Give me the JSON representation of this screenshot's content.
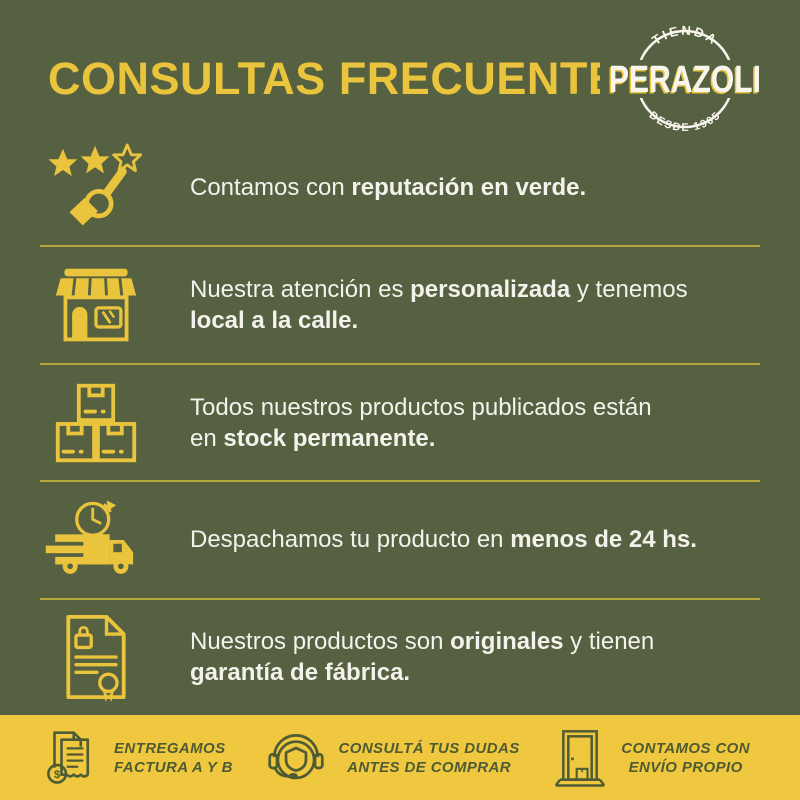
{
  "page": {
    "bg": "#566141",
    "accent": "#E9C43C",
    "divider": "#B3A93D",
    "text_color": "#F3F2EC",
    "footer_bg": "#EFC840",
    "footer_ink": "#4E5B33"
  },
  "header": {
    "title": "CONSULTAS FRECUENTES"
  },
  "logo": {
    "top_arc": "· TIENDA ·",
    "name": "PERAZOLI",
    "bottom_arc": "· DESDE 1905 ·"
  },
  "rows": [
    {
      "icon": "reputation-stars-hand-icon",
      "lines": [
        [
          {
            "t": "Contamos con ",
            "b": false
          },
          {
            "t": "reputación en verde.",
            "b": true
          }
        ]
      ]
    },
    {
      "icon": "storefront-icon",
      "lines": [
        [
          {
            "t": "Nuestra atención es ",
            "b": false
          },
          {
            "t": "personalizada",
            "b": true
          },
          {
            "t": " y tenemos",
            "b": false
          }
        ],
        [
          {
            "t": "local a la calle.",
            "b": true
          }
        ]
      ]
    },
    {
      "icon": "stacked-boxes-icon",
      "lines": [
        [
          {
            "t": "Todos nuestros productos publicados están",
            "b": false
          }
        ],
        [
          {
            "t": "en ",
            "b": false
          },
          {
            "t": "stock permanente.",
            "b": true
          }
        ]
      ]
    },
    {
      "icon": "delivery-truck-clock-icon",
      "lines": [
        [
          {
            "t": "Despachamos tu producto en ",
            "b": false
          },
          {
            "t": "menos de 24 hs.",
            "b": true
          }
        ]
      ]
    },
    {
      "icon": "warranty-certificate-icon",
      "lines": [
        [
          {
            "t": "Nuestros productos son ",
            "b": false
          },
          {
            "t": "originales",
            "b": true
          },
          {
            "t": " y tienen",
            "b": false
          }
        ],
        [
          {
            "t": "garantía de fábrica.",
            "b": true
          }
        ]
      ]
    }
  ],
  "footer": {
    "items": [
      {
        "icon": "invoice-icon",
        "lines": [
          "ENTREGAMOS",
          "FACTURA A Y B"
        ]
      },
      {
        "icon": "headset-icon",
        "lines": [
          "CONSULTÁ TUS DUDAS",
          "ANTES DE COMPRAR"
        ]
      },
      {
        "icon": "door-delivery-icon",
        "lines": [
          "CONTAMOS CON",
          "ENVÍO PROPIO"
        ]
      }
    ]
  }
}
